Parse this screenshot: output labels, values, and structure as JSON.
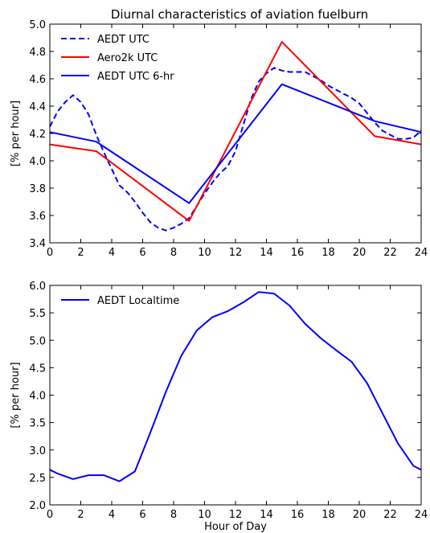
{
  "figure": {
    "title": "Diurnal characteristics of aviation fuelburn"
  },
  "chart_data": [
    {
      "type": "line",
      "title": "Diurnal characteristics of aviation fuelburn",
      "xlabel": "",
      "ylabel": "[% per hour]",
      "xlim": [
        0,
        24
      ],
      "ylim": [
        3.4,
        5.0
      ],
      "xticks": [
        "0",
        "2",
        "4",
        "6",
        "8",
        "10",
        "12",
        "14",
        "16",
        "18",
        "20",
        "22",
        "24"
      ],
      "yticks": [
        "3.4",
        "3.6",
        "3.8",
        "4.0",
        "4.2",
        "4.4",
        "4.6",
        "4.8",
        "5.0"
      ],
      "grid": false,
      "legend_position": "top-left",
      "series": [
        {
          "name": "AEDT UTC",
          "color": "#0000ff",
          "dash": "dashed",
          "x": [
            0,
            0.5,
            1,
            1.5,
            2,
            2.5,
            3,
            3.5,
            4,
            4.5,
            5,
            5.5,
            6,
            6.5,
            7,
            7.5,
            8,
            8.5,
            9,
            9.5,
            10,
            10.5,
            11,
            11.5,
            12,
            12.5,
            13,
            13.5,
            14,
            14.5,
            15,
            15.5,
            16,
            16.5,
            17,
            17.5,
            18,
            18.5,
            19,
            19.5,
            20,
            20.5,
            21,
            21.5,
            22,
            22.5,
            23,
            23.5,
            24
          ],
          "y": [
            4.25,
            4.36,
            4.43,
            4.48,
            4.43,
            4.34,
            4.19,
            4.06,
            3.94,
            3.82,
            3.77,
            3.7,
            3.62,
            3.55,
            3.51,
            3.49,
            3.51,
            3.54,
            3.58,
            3.67,
            3.76,
            3.84,
            3.91,
            3.96,
            4.07,
            4.26,
            4.45,
            4.58,
            4.64,
            4.68,
            4.66,
            4.65,
            4.65,
            4.65,
            4.62,
            4.59,
            4.55,
            4.52,
            4.49,
            4.46,
            4.42,
            4.35,
            4.28,
            4.22,
            4.19,
            4.16,
            4.16,
            4.17,
            4.22
          ]
        },
        {
          "name": "Aero2k UTC",
          "color": "#ff0000",
          "dash": "solid",
          "x": [
            0,
            3,
            9,
            15,
            21,
            24
          ],
          "y": [
            4.12,
            4.07,
            3.56,
            4.87,
            4.18,
            4.12
          ]
        },
        {
          "name": "AEDT UTC 6-hr",
          "color": "#0000ff",
          "dash": "solid",
          "x": [
            0,
            3,
            9,
            15,
            21,
            24
          ],
          "y": [
            4.21,
            4.14,
            3.69,
            4.56,
            4.29,
            4.21
          ]
        }
      ]
    },
    {
      "type": "line",
      "title": "",
      "xlabel": "Hour of Day",
      "ylabel": "[% per hour]",
      "xlim": [
        0,
        24
      ],
      "ylim": [
        2.0,
        6.0
      ],
      "xticks": [
        "0",
        "2",
        "4",
        "6",
        "8",
        "10",
        "12",
        "14",
        "16",
        "18",
        "20",
        "22",
        "24"
      ],
      "yticks": [
        "2.0",
        "2.5",
        "3.0",
        "3.5",
        "4.0",
        "4.5",
        "5.0",
        "5.5",
        "6.0"
      ],
      "grid": false,
      "legend_position": "top-left",
      "series": [
        {
          "name": "AEDT Localtime",
          "color": "#0000ff",
          "dash": "solid",
          "x": [
            0,
            0.5,
            1.5,
            2.5,
            3.5,
            4.5,
            5.5,
            6.5,
            7.5,
            8.5,
            9.5,
            10.5,
            11.5,
            12.5,
            13.5,
            14.5,
            15.5,
            16.5,
            17.5,
            18.5,
            19.5,
            20.5,
            21.5,
            22.5,
            23.5,
            24
          ],
          "y": [
            2.64,
            2.57,
            2.47,
            2.54,
            2.54,
            2.43,
            2.61,
            3.32,
            4.06,
            4.72,
            5.18,
            5.42,
            5.53,
            5.69,
            5.88,
            5.85,
            5.63,
            5.3,
            5.04,
            4.82,
            4.61,
            4.22,
            3.67,
            3.12,
            2.71,
            2.64
          ]
        }
      ]
    }
  ]
}
